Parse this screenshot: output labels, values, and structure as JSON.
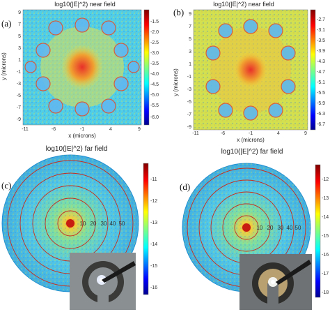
{
  "panels": {
    "a": {
      "label": "(a)",
      "title": "log10(|E|^2)    near field",
      "xlabel": "x (microns)",
      "ylabel": "y (microns)",
      "xticks": [
        "-11",
        "-6",
        "-1",
        "4",
        "9"
      ],
      "yticks": [
        "9",
        "7",
        "5",
        "3",
        "1",
        "-1",
        "-3",
        "-5",
        "-7",
        "-9"
      ],
      "cbar_ticks": [
        "-1.5",
        "-2.0",
        "-2.5",
        "-3.0",
        "-3.5",
        "-4.0",
        "-4.5",
        "-5.0",
        "-5.5",
        "-6.0"
      ]
    },
    "b": {
      "label": "(b)",
      "title": "log10(|E|^2)    near field",
      "xlabel": "x (microns)",
      "ylabel": "y (microns)",
      "xticks": [
        "-11",
        "-6",
        "-1",
        "4",
        "9"
      ],
      "yticks": [
        "9",
        "7",
        "5",
        "3",
        "1",
        "-1",
        "-3",
        "-5",
        "-7",
        "-9"
      ],
      "cbar_ticks": [
        "-2.7",
        "-3.1",
        "-3.5",
        "-3.9",
        "-4.3",
        "-4.7",
        "-5.1",
        "-5.5",
        "-5.9",
        "-6.3",
        "-6.7"
      ]
    },
    "c": {
      "label": "(c)",
      "title": "log10(|E|^2)   far field",
      "rings": [
        "10",
        "20",
        "30",
        "40",
        "50"
      ],
      "cbar_ticks": [
        "-11",
        "-12",
        "-13",
        "-14",
        "-15",
        "-16"
      ]
    },
    "d": {
      "label": "(d)",
      "title": "log10(|E|^2)   far field",
      "rings": [
        "10",
        "20",
        "30",
        "40",
        "50"
      ],
      "cbar_ticks": [
        "-12",
        "-13",
        "-14",
        "-15",
        "-16",
        "-17",
        "-18"
      ]
    }
  },
  "colors": {
    "jet": [
      "#00008f",
      "#0000ff",
      "#0080ff",
      "#00ffff",
      "#80ff80",
      "#ffff00",
      "#ff8000",
      "#ff0000",
      "#800000"
    ],
    "field_bg": "#4fd0e8",
    "field_hot": "#e8402a",
    "ring": "#c82a1c"
  }
}
